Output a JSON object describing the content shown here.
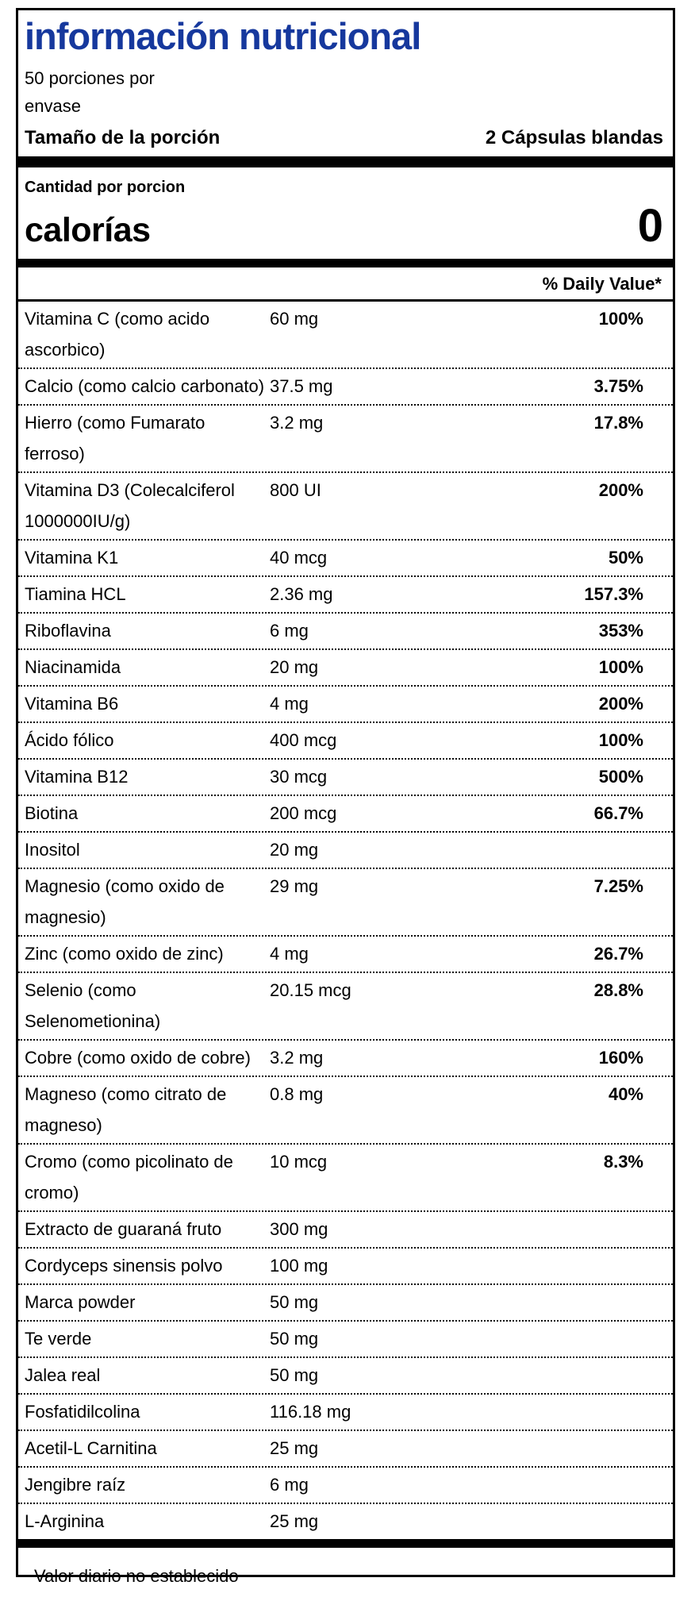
{
  "label": {
    "title": "información nutricional",
    "title_color": "#16389d",
    "servings_line1": "50 porciones por",
    "servings_line2": "envase",
    "serving_size_label": "Tamaño de la porción",
    "serving_size_value": "2 Cápsulas blandas",
    "amount_per_serving": "Cantidad por porcion",
    "calories_label": "calorías",
    "calories_value": "0",
    "daily_value_header": "% Daily Value*",
    "footer": "Valor diario no establecido"
  },
  "nutrients": [
    {
      "name": "Vitamina C (como acido ascorbico)",
      "amount": "60 mg",
      "dv": "100%"
    },
    {
      "name": "Calcio (como calcio carbonato)",
      "amount": "37.5 mg",
      "dv": "3.75%"
    },
    {
      "name": "Hierro (como Fumarato ferroso)",
      "amount": "3.2 mg",
      "dv": "17.8%"
    },
    {
      "name": "Vitamina D3 (Colecalciferol 1000000IU/g)",
      "amount": "800 UI",
      "dv": "200%"
    },
    {
      "name": "Vitamina K1",
      "amount": "40 mcg",
      "dv": "50%"
    },
    {
      "name": "Tiamina HCL",
      "amount": "2.36 mg",
      "dv": "157.3%"
    },
    {
      "name": "Riboflavina",
      "amount": "6 mg",
      "dv": "353%"
    },
    {
      "name": "Niacinamida",
      "amount": "20 mg",
      "dv": "100%"
    },
    {
      "name": "Vitamina B6",
      "amount": "4 mg",
      "dv": "200%"
    },
    {
      "name": "Ácido fólico",
      "amount": "400 mcg",
      "dv": "100%"
    },
    {
      "name": "Vitamina B12",
      "amount": "30 mcg",
      "dv": "500%"
    },
    {
      "name": "Biotina",
      "amount": "200 mcg",
      "dv": "66.7%"
    },
    {
      "name": "Inositol",
      "amount": "20 mg",
      "dv": ""
    },
    {
      "name": "Magnesio (como oxido de magnesio)",
      "amount": "29 mg",
      "dv": "7.25%"
    },
    {
      "name": "Zinc (como oxido de zinc)",
      "amount": "4 mg",
      "dv": "26.7%"
    },
    {
      "name": "Selenio (como Selenometionina)",
      "amount": "20.15 mcg",
      "dv": "28.8%"
    },
    {
      "name": "Cobre (como oxido de cobre)",
      "amount": "3.2 mg",
      "dv": "160%"
    },
    {
      "name": "Magneso (como citrato de magneso)",
      "amount": "0.8 mg",
      "dv": "40%"
    },
    {
      "name": "Cromo (como picolinato de cromo)",
      "amount": "10 mcg",
      "dv": "8.3%"
    },
    {
      "name": "Extracto de guaraná fruto",
      "amount": "300 mg",
      "dv": ""
    },
    {
      "name": "Cordyceps sinensis polvo",
      "amount": "100 mg",
      "dv": ""
    },
    {
      "name": "Marca powder",
      "amount": "50 mg",
      "dv": ""
    },
    {
      "name": "Te verde",
      "amount": "50 mg",
      "dv": ""
    },
    {
      "name": "Jalea real",
      "amount": "50 mg",
      "dv": ""
    },
    {
      "name": "Fosfatidilcolina",
      "amount": "116.18 mg",
      "dv": ""
    },
    {
      "name": "Acetil-L Carnitina",
      "amount": "25 mg",
      "dv": ""
    },
    {
      "name": "Jengibre raíz",
      "amount": "6 mg",
      "dv": ""
    },
    {
      "name": "L-Arginina",
      "amount": "25 mg",
      "dv": ""
    }
  ]
}
